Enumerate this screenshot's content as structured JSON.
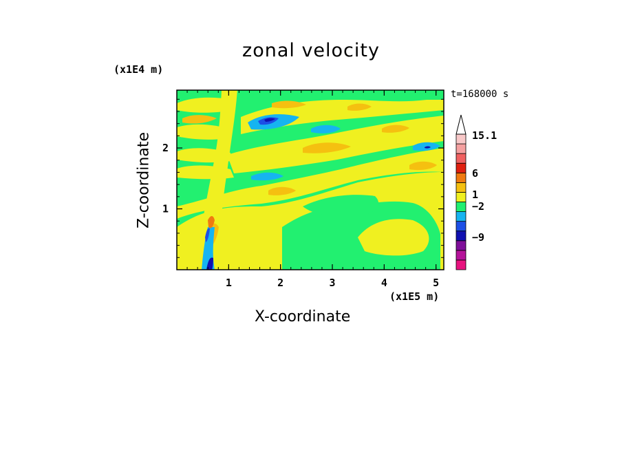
{
  "chart_data": {
    "type": "heatmap",
    "title": "zonal velocity",
    "xlabel": "X-coordinate",
    "ylabel": "Z-coordinate",
    "x_unit": "(x1E5 m)",
    "y_unit": "(x1E4 m)",
    "annotation": "t=168000 s",
    "xlim": [
      0,
      5.15
    ],
    "ylim": [
      0,
      2.95
    ],
    "x_ticks": [
      1,
      2,
      3,
      4,
      5
    ],
    "y_ticks": [
      1,
      2
    ],
    "colorbar": {
      "labels": [
        "15.1",
        "6",
        "1",
        "−2",
        "−9"
      ],
      "colors": [
        "#e8137f",
        "#b5139a",
        "#7f0f9a",
        "#1010b0",
        "#1c4fe6",
        "#16b4f0",
        "#22f070",
        "#f0f020",
        "#f5c010",
        "#f07a10",
        "#e02010",
        "#f06060",
        "#f5a0a0",
        "#f8c8c8"
      ],
      "extend": "max"
    },
    "field_colors": {
      "background": "#22f070",
      "positive_low": "#f0f020",
      "positive_mid": "#f5c010",
      "positive_high": "#f07a10",
      "positive_max": "#e02010",
      "negative_low": "#16b4f0",
      "negative_mid": "#1c4fe6",
      "negative_high": "#1010b0"
    }
  }
}
